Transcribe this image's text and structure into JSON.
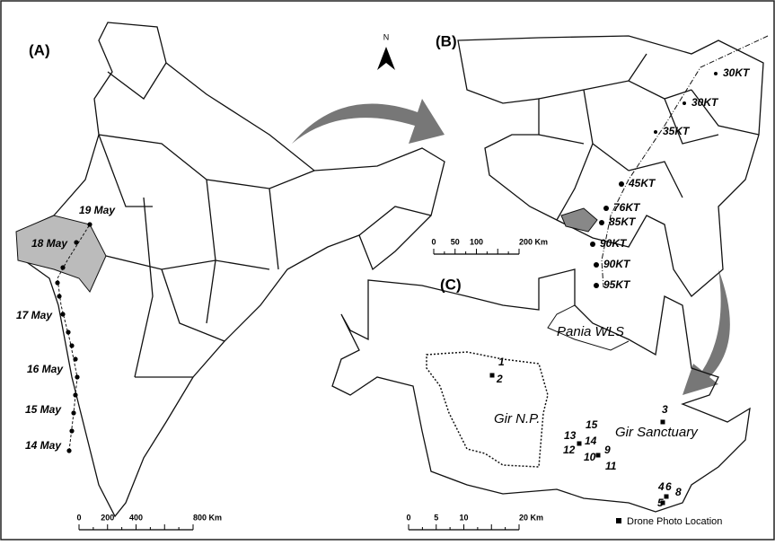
{
  "panels": [
    {
      "label": "(A)",
      "dates": [
        "19 May",
        "18 May",
        "17 May",
        "16 May",
        "15 May",
        "14 May"
      ],
      "scale": [
        "0",
        "200",
        "400",
        "800 Km"
      ]
    },
    {
      "label": "(B)",
      "track_labels": [
        "30KT",
        "30KT",
        "35KT",
        "45KT",
        "76KT",
        "85KT",
        "90KT",
        "90KT",
        "95KT"
      ],
      "scale": [
        "0",
        "50",
        "100",
        "200 Km"
      ]
    },
    {
      "label": "(C)",
      "places": [
        "Pania WLS",
        "Gir N.P.",
        "Gir Sanctuary"
      ],
      "locations": [
        "1",
        "2",
        "3",
        "4",
        "6",
        "8",
        "5",
        "9",
        "10",
        "11",
        "12",
        "13",
        "14",
        "15"
      ],
      "scale": [
        "0",
        "5",
        "10",
        "20 Km"
      ]
    }
  ],
  "north_arrow": "N",
  "legend": "Drone Photo Location"
}
